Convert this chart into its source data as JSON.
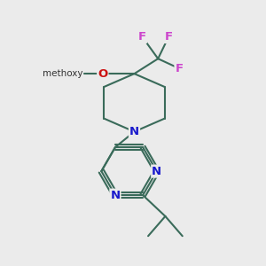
{
  "background_color": "#ebebeb",
  "bond_color": "#3a6b5a",
  "bond_width": 1.5,
  "atom_colors": {
    "N": "#1a1acc",
    "O": "#cc1111",
    "F": "#cc44cc",
    "C": "#000000"
  },
  "font_size": 9.5,
  "methoxy_text": "methoxy",
  "figsize": [
    3.0,
    3.0
  ],
  "dpi": 100
}
